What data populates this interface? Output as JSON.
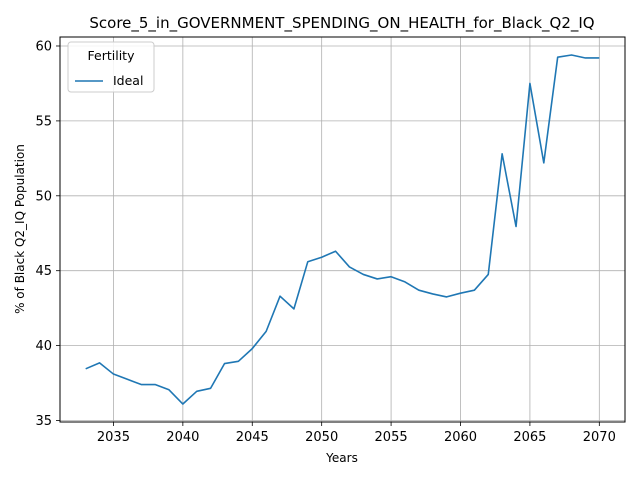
{
  "chart_data": {
    "type": "line",
    "title": "Score_5_in_GOVERNMENT_SPENDING_ON_HEALTH_for_Black_Q2_IQ",
    "xlabel": "Years",
    "ylabel": "% of Black Q2_IQ Population",
    "xlim": [
      2031.15,
      2071.85
    ],
    "ylim": [
      34.9,
      60.6
    ],
    "xticks": [
      2035,
      2040,
      2045,
      2050,
      2055,
      2060,
      2065,
      2070
    ],
    "yticks": [
      35,
      40,
      45,
      50,
      55,
      60
    ],
    "grid": true,
    "legend": {
      "title": "Fertility",
      "placement": "top-left"
    },
    "series": [
      {
        "name": "Ideal",
        "color": "#1f77b4",
        "x": [
          2033,
          2034,
          2035,
          2036,
          2037,
          2038,
          2039,
          2040,
          2041,
          2042,
          2043,
          2044,
          2045,
          2046,
          2047,
          2048,
          2049,
          2050,
          2051,
          2052,
          2053,
          2054,
          2055,
          2056,
          2057,
          2058,
          2059,
          2060,
          2061,
          2062,
          2063,
          2064,
          2065,
          2066,
          2067,
          2068,
          2069,
          2070
        ],
        "values": [
          38.45,
          38.85,
          38.1,
          37.75,
          37.4,
          37.4,
          37.05,
          36.1,
          36.95,
          37.15,
          38.8,
          38.95,
          39.8,
          40.95,
          43.3,
          42.45,
          45.6,
          45.9,
          46.3,
          45.25,
          44.75,
          44.45,
          44.6,
          44.25,
          43.7,
          43.45,
          43.25,
          43.5,
          43.7,
          44.75,
          52.8,
          47.95,
          57.5,
          52.2,
          59.25,
          59.4,
          59.2,
          59.2
        ]
      }
    ]
  }
}
